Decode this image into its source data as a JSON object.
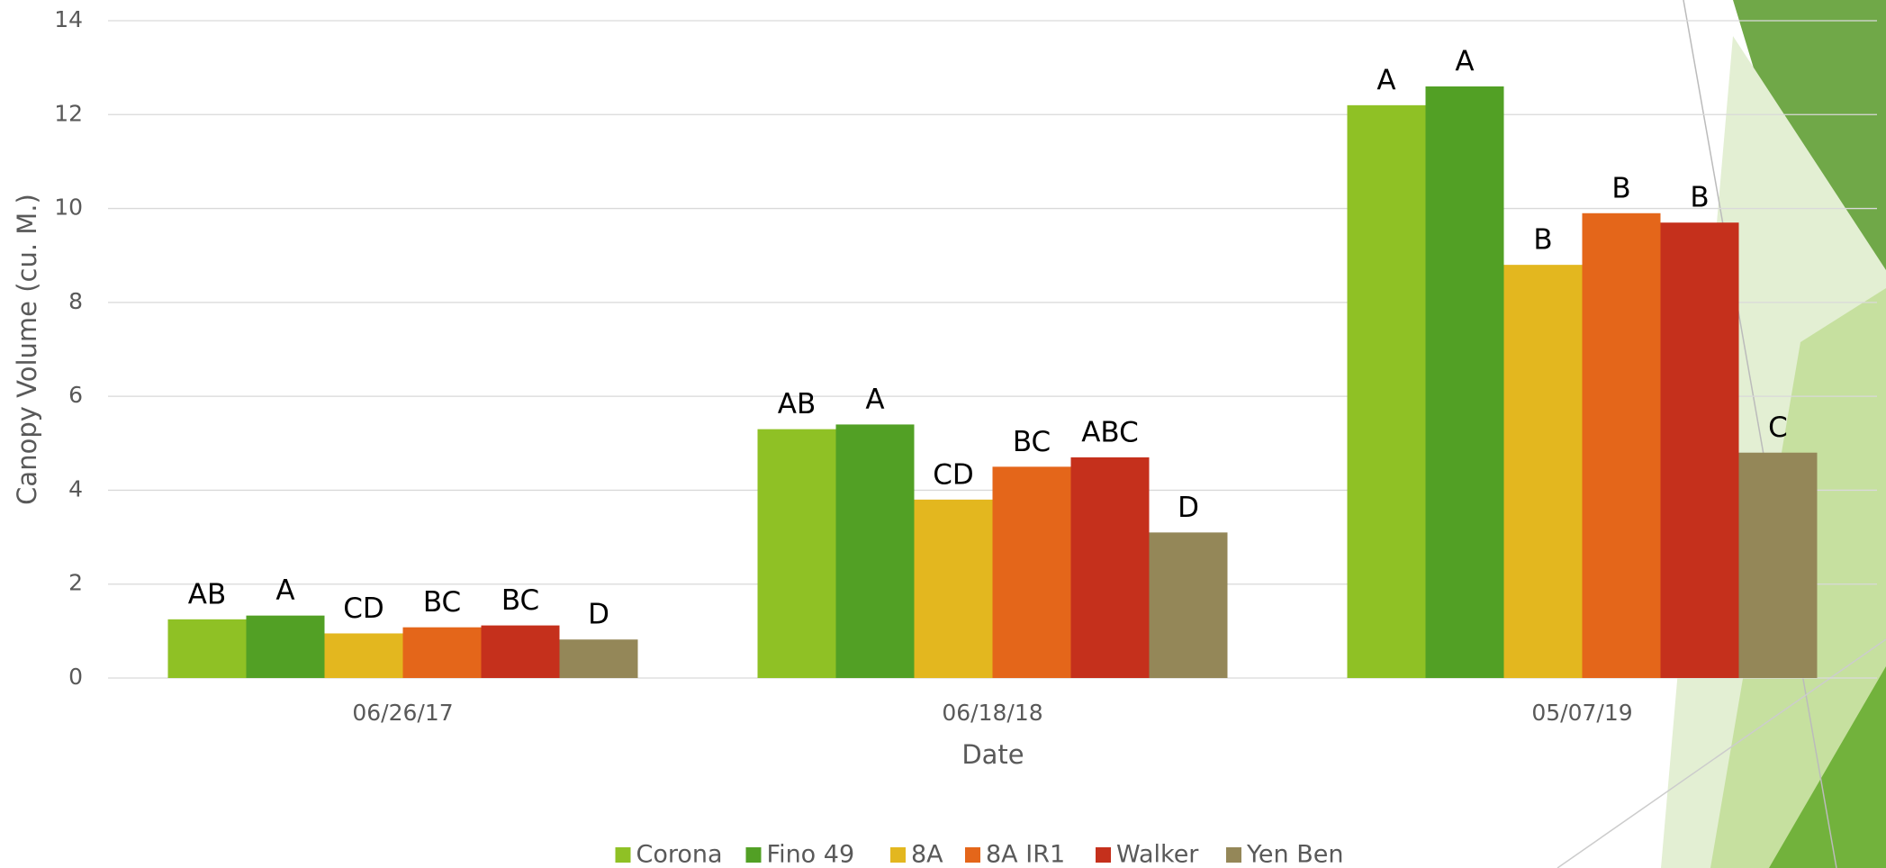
{
  "chart_data": {
    "type": "bar",
    "x_label": "Date",
    "y_label": "Canopy Volume (cu. M.)",
    "categories": [
      "06/26/17",
      "06/18/18",
      "05/07/19"
    ],
    "series": [
      {
        "name": "Corona",
        "color": "#8fc125",
        "values": [
          1.25,
          5.3,
          12.2
        ],
        "significance_letters": [
          "AB",
          "AB",
          "A"
        ]
      },
      {
        "name": "Fino 49",
        "color": "#52a025",
        "values": [
          1.33,
          5.4,
          12.6
        ],
        "significance_letters": [
          "A",
          "A",
          "A"
        ]
      },
      {
        "name": "8A",
        "color": "#e3b71f",
        "values": [
          0.95,
          3.8,
          8.8
        ],
        "significance_letters": [
          "CD",
          "CD",
          "B"
        ]
      },
      {
        "name": "8A IR1",
        "color": "#e4661a",
        "values": [
          1.08,
          4.5,
          9.9
        ],
        "significance_letters": [
          "BC",
          "BC",
          "B"
        ]
      },
      {
        "name": "Walker",
        "color": "#c5301c",
        "values": [
          1.12,
          4.7,
          9.7
        ],
        "significance_letters": [
          "BC",
          "ABC",
          "B"
        ]
      },
      {
        "name": "Yen Ben",
        "color": "#948758",
        "values": [
          0.82,
          3.1,
          4.8
        ],
        "significance_letters": [
          "D",
          "D",
          "C"
        ]
      }
    ],
    "ylim": [
      0,
      14
    ],
    "yticks": [
      0,
      2,
      4,
      6,
      8,
      10,
      12,
      14
    ],
    "grid": true,
    "legend": "bottom"
  }
}
